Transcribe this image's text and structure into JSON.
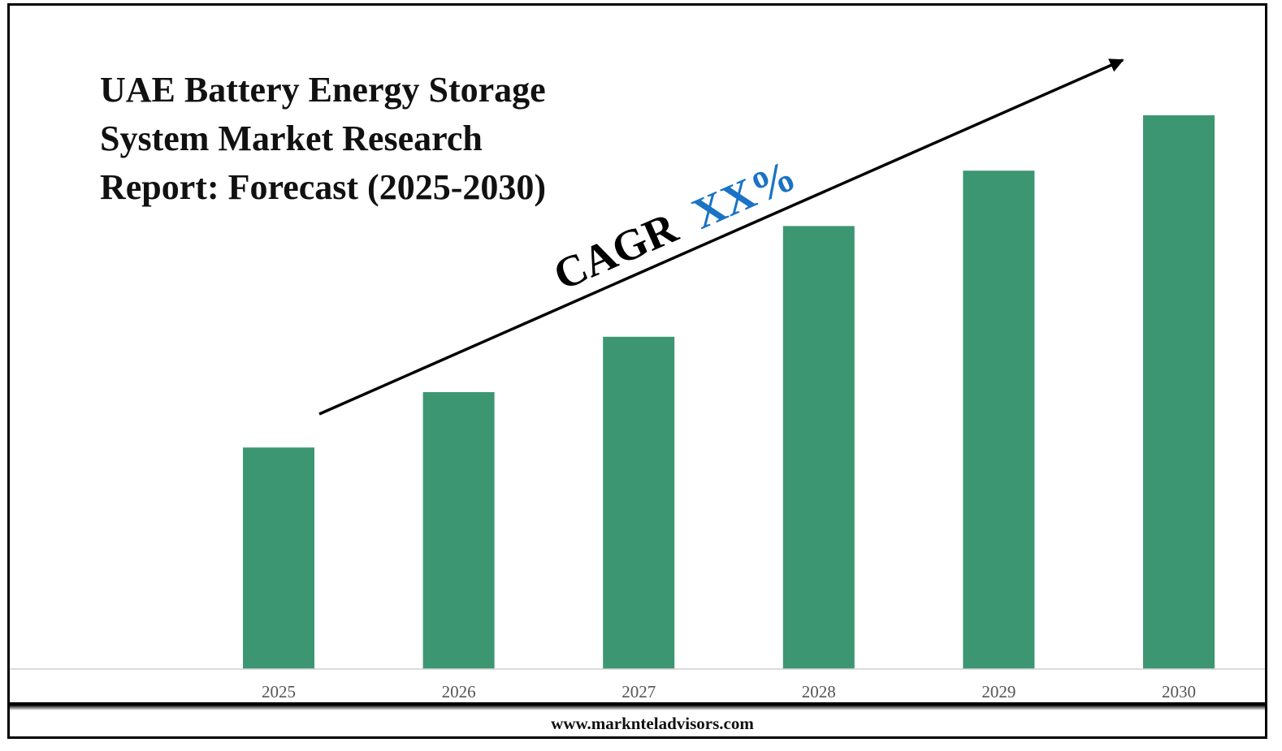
{
  "chart_data": {
    "type": "bar",
    "title_lines": [
      "UAE Battery Energy Storage",
      "System Market Research",
      "Report: Forecast (2025-2030)"
    ],
    "categories": [
      "2025",
      "2026",
      "2027",
      "2028",
      "2029",
      "2030"
    ],
    "values": [
      40,
      50,
      60,
      80,
      90,
      100
    ],
    "ylim": [
      0,
      100
    ],
    "xlabel": "",
    "ylabel": "",
    "grid": false,
    "legend": "none",
    "bar_color": "#3d9672",
    "annotation": {
      "prefix": "CAGR",
      "value": "XX%",
      "prefix_color": "#000000",
      "value_color": "#1a73c4"
    }
  },
  "footer": {
    "website": "www.marknteladvisors.com"
  }
}
